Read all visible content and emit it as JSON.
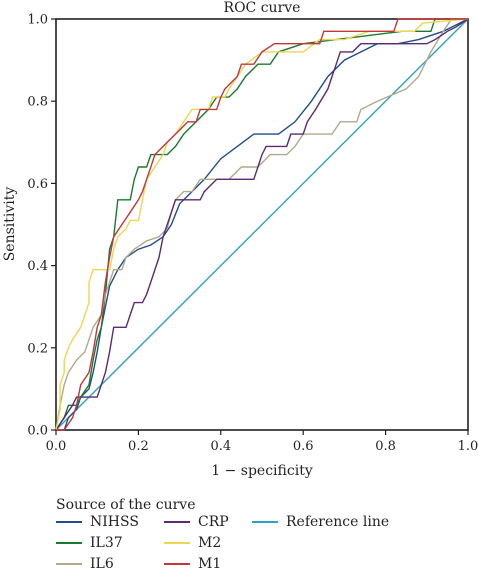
{
  "chart_data": {
    "type": "line",
    "title": "ROC curve",
    "xlabel": "1 − specificity",
    "ylabel": "Sensitivity",
    "xlim": [
      0,
      1
    ],
    "ylim": [
      0,
      1
    ],
    "xticks": [
      "0.0",
      "0.2",
      "0.4",
      "0.6",
      "0.8",
      "1.0"
    ],
    "yticks": [
      "0.0",
      "0.2",
      "0.4",
      "0.6",
      "0.8",
      "1.0"
    ],
    "grid": false,
    "legend_title": "Source of the curve",
    "legend_position": "bottom",
    "series": [
      {
        "name": "NIHSS",
        "color": "#1f4e8c",
        "points": [
          [
            0,
            0
          ],
          [
            0.02,
            0
          ],
          [
            0.03,
            0.03
          ],
          [
            0.05,
            0.05
          ],
          [
            0.06,
            0.08
          ],
          [
            0.08,
            0.1
          ],
          [
            0.09,
            0.14
          ],
          [
            0.1,
            0.19
          ],
          [
            0.11,
            0.25
          ],
          [
            0.12,
            0.3
          ],
          [
            0.13,
            0.35
          ],
          [
            0.15,
            0.39
          ],
          [
            0.17,
            0.42
          ],
          [
            0.2,
            0.44
          ],
          [
            0.23,
            0.45
          ],
          [
            0.26,
            0.47
          ],
          [
            0.28,
            0.5
          ],
          [
            0.3,
            0.55
          ],
          [
            0.33,
            0.58
          ],
          [
            0.36,
            0.61
          ],
          [
            0.4,
            0.66
          ],
          [
            0.44,
            0.69
          ],
          [
            0.48,
            0.72
          ],
          [
            0.5,
            0.72
          ],
          [
            0.54,
            0.72
          ],
          [
            0.58,
            0.75
          ],
          [
            0.62,
            0.8
          ],
          [
            0.66,
            0.86
          ],
          [
            0.7,
            0.9
          ],
          [
            0.74,
            0.92
          ],
          [
            0.78,
            0.94
          ],
          [
            0.83,
            0.94
          ],
          [
            0.88,
            0.95
          ],
          [
            0.94,
            0.97
          ],
          [
            1,
            1
          ]
        ]
      },
      {
        "name": "IL37",
        "color": "#1a7a2e",
        "points": [
          [
            0,
            0
          ],
          [
            0.02,
            0.03
          ],
          [
            0.03,
            0.06
          ],
          [
            0.05,
            0.06
          ],
          [
            0.06,
            0.08
          ],
          [
            0.08,
            0.11
          ],
          [
            0.09,
            0.17
          ],
          [
            0.1,
            0.22
          ],
          [
            0.11,
            0.25
          ],
          [
            0.12,
            0.33
          ],
          [
            0.13,
            0.44
          ],
          [
            0.14,
            0.47
          ],
          [
            0.15,
            0.56
          ],
          [
            0.18,
            0.56
          ],
          [
            0.19,
            0.61
          ],
          [
            0.2,
            0.64
          ],
          [
            0.22,
            0.64
          ],
          [
            0.23,
            0.67
          ],
          [
            0.27,
            0.67
          ],
          [
            0.29,
            0.69
          ],
          [
            0.31,
            0.72
          ],
          [
            0.34,
            0.75
          ],
          [
            0.37,
            0.78
          ],
          [
            0.39,
            0.81
          ],
          [
            0.42,
            0.81
          ],
          [
            0.44,
            0.83
          ],
          [
            0.46,
            0.86
          ],
          [
            0.49,
            0.89
          ],
          [
            0.52,
            0.89
          ],
          [
            0.54,
            0.92
          ],
          [
            0.6,
            0.94
          ],
          [
            0.84,
            0.97
          ],
          [
            0.91,
            0.97
          ],
          [
            0.92,
            1
          ],
          [
            1,
            1
          ]
        ]
      },
      {
        "name": "IL6",
        "color": "#b0aa8c",
        "points": [
          [
            0,
            0
          ],
          [
            0.01,
            0.06
          ],
          [
            0.02,
            0.11
          ],
          [
            0.03,
            0.14
          ],
          [
            0.05,
            0.17
          ],
          [
            0.07,
            0.19
          ],
          [
            0.08,
            0.22
          ],
          [
            0.09,
            0.25
          ],
          [
            0.11,
            0.28
          ],
          [
            0.12,
            0.33
          ],
          [
            0.13,
            0.36
          ],
          [
            0.14,
            0.39
          ],
          [
            0.16,
            0.39
          ],
          [
            0.17,
            0.42
          ],
          [
            0.19,
            0.44
          ],
          [
            0.22,
            0.46
          ],
          [
            0.25,
            0.47
          ],
          [
            0.27,
            0.49
          ],
          [
            0.28,
            0.53
          ],
          [
            0.29,
            0.56
          ],
          [
            0.31,
            0.58
          ],
          [
            0.33,
            0.58
          ],
          [
            0.35,
            0.61
          ],
          [
            0.42,
            0.61
          ],
          [
            0.45,
            0.64
          ],
          [
            0.49,
            0.64
          ],
          [
            0.52,
            0.67
          ],
          [
            0.56,
            0.67
          ],
          [
            0.58,
            0.69
          ],
          [
            0.6,
            0.72
          ],
          [
            0.67,
            0.72
          ],
          [
            0.69,
            0.75
          ],
          [
            0.73,
            0.75
          ],
          [
            0.74,
            0.78
          ],
          [
            0.78,
            0.8
          ],
          [
            0.85,
            0.83
          ],
          [
            0.88,
            0.86
          ],
          [
            0.91,
            0.92
          ],
          [
            0.94,
            0.97
          ],
          [
            0.96,
            1
          ],
          [
            1,
            1
          ]
        ]
      },
      {
        "name": "CRP",
        "color": "#5b2a72",
        "points": [
          [
            0,
            0
          ],
          [
            0.02,
            0.03
          ],
          [
            0.04,
            0.06
          ],
          [
            0.05,
            0.08
          ],
          [
            0.1,
            0.08
          ],
          [
            0.12,
            0.14
          ],
          [
            0.13,
            0.19
          ],
          [
            0.14,
            0.25
          ],
          [
            0.17,
            0.25
          ],
          [
            0.18,
            0.28
          ],
          [
            0.19,
            0.31
          ],
          [
            0.21,
            0.31
          ],
          [
            0.22,
            0.33
          ],
          [
            0.23,
            0.36
          ],
          [
            0.25,
            0.42
          ],
          [
            0.26,
            0.47
          ],
          [
            0.28,
            0.53
          ],
          [
            0.29,
            0.56
          ],
          [
            0.35,
            0.56
          ],
          [
            0.36,
            0.58
          ],
          [
            0.39,
            0.61
          ],
          [
            0.48,
            0.61
          ],
          [
            0.49,
            0.64
          ],
          [
            0.5,
            0.67
          ],
          [
            0.51,
            0.69
          ],
          [
            0.56,
            0.69
          ],
          [
            0.57,
            0.72
          ],
          [
            0.6,
            0.72
          ],
          [
            0.61,
            0.75
          ],
          [
            0.63,
            0.78
          ],
          [
            0.66,
            0.83
          ],
          [
            0.67,
            0.86
          ],
          [
            0.68,
            0.89
          ],
          [
            0.69,
            0.92
          ],
          [
            0.72,
            0.92
          ],
          [
            0.74,
            0.94
          ],
          [
            0.82,
            0.94
          ],
          [
            0.9,
            0.94
          ],
          [
            0.92,
            0.95
          ],
          [
            0.95,
            0.97
          ],
          [
            0.97,
            0.98
          ],
          [
            1,
            1
          ]
        ]
      },
      {
        "name": "M2",
        "color": "#efd64f",
        "points": [
          [
            0,
            0
          ],
          [
            0.01,
            0.05
          ],
          [
            0.01,
            0.11
          ],
          [
            0.02,
            0.14
          ],
          [
            0.02,
            0.17
          ],
          [
            0.03,
            0.2
          ],
          [
            0.04,
            0.22
          ],
          [
            0.06,
            0.25
          ],
          [
            0.07,
            0.28
          ],
          [
            0.08,
            0.31
          ],
          [
            0.08,
            0.36
          ],
          [
            0.09,
            0.39
          ],
          [
            0.13,
            0.39
          ],
          [
            0.14,
            0.44
          ],
          [
            0.15,
            0.47
          ],
          [
            0.17,
            0.49
          ],
          [
            0.18,
            0.51
          ],
          [
            0.2,
            0.51
          ],
          [
            0.21,
            0.56
          ],
          [
            0.22,
            0.61
          ],
          [
            0.24,
            0.64
          ],
          [
            0.26,
            0.67
          ],
          [
            0.27,
            0.7
          ],
          [
            0.29,
            0.72
          ],
          [
            0.31,
            0.75
          ],
          [
            0.33,
            0.78
          ],
          [
            0.37,
            0.78
          ],
          [
            0.38,
            0.81
          ],
          [
            0.41,
            0.81
          ],
          [
            0.42,
            0.83
          ],
          [
            0.44,
            0.86
          ],
          [
            0.46,
            0.89
          ],
          [
            0.5,
            0.92
          ],
          [
            0.6,
            0.92
          ],
          [
            0.64,
            0.95
          ],
          [
            0.7,
            0.95
          ],
          [
            0.76,
            0.97
          ],
          [
            0.87,
            0.97
          ],
          [
            0.89,
            0.99
          ],
          [
            1,
            1
          ]
        ]
      },
      {
        "name": "M1",
        "color": "#c4363c",
        "points": [
          [
            0,
            0
          ],
          [
            0.02,
            0
          ],
          [
            0.04,
            0.03
          ],
          [
            0.05,
            0.06
          ],
          [
            0.06,
            0.11
          ],
          [
            0.08,
            0.14
          ],
          [
            0.09,
            0.19
          ],
          [
            0.1,
            0.25
          ],
          [
            0.11,
            0.28
          ],
          [
            0.12,
            0.36
          ],
          [
            0.13,
            0.42
          ],
          [
            0.14,
            0.47
          ],
          [
            0.16,
            0.5
          ],
          [
            0.18,
            0.53
          ],
          [
            0.2,
            0.56
          ],
          [
            0.21,
            0.58
          ],
          [
            0.22,
            0.61
          ],
          [
            0.23,
            0.64
          ],
          [
            0.24,
            0.67
          ],
          [
            0.27,
            0.7
          ],
          [
            0.29,
            0.72
          ],
          [
            0.32,
            0.75
          ],
          [
            0.34,
            0.75
          ],
          [
            0.35,
            0.78
          ],
          [
            0.39,
            0.78
          ],
          [
            0.4,
            0.81
          ],
          [
            0.41,
            0.83
          ],
          [
            0.44,
            0.86
          ],
          [
            0.45,
            0.89
          ],
          [
            0.48,
            0.89
          ],
          [
            0.5,
            0.92
          ],
          [
            0.53,
            0.94
          ],
          [
            0.64,
            0.94
          ],
          [
            0.65,
            0.97
          ],
          [
            0.82,
            0.97
          ],
          [
            0.83,
            1
          ],
          [
            1,
            1
          ]
        ]
      },
      {
        "name": "Reference line",
        "color": "#2ca3c4",
        "points": [
          [
            0,
            0
          ],
          [
            1,
            1
          ]
        ]
      }
    ]
  }
}
